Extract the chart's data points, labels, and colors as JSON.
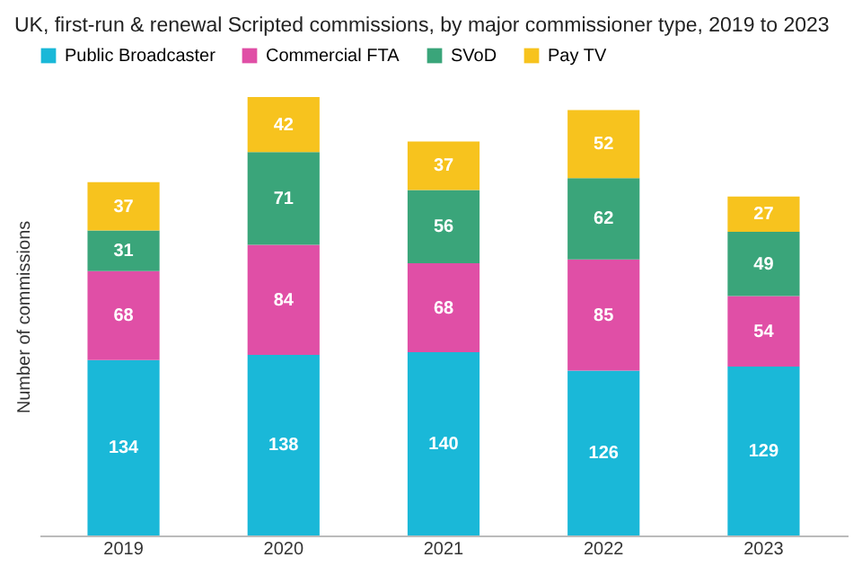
{
  "chart_data": {
    "type": "bar",
    "title": "UK, first-run & renewal Scripted commissions, by major commissioner type, 2019 to 2023",
    "ylabel": "Number of commissions",
    "categories": [
      "2019",
      "2020",
      "2021",
      "2022",
      "2023"
    ],
    "stacked": true,
    "data_labels": true,
    "legend": "top",
    "grid": false,
    "tick_labels": "x",
    "series": [
      {
        "name": "Public Broadcaster",
        "color": "#1ab8d8",
        "values": [
          134,
          138,
          140,
          126,
          129
        ]
      },
      {
        "name": "Commercial FTA",
        "color": "#e04fa6",
        "values": [
          68,
          84,
          68,
          85,
          54
        ]
      },
      {
        "name": "SVoD",
        "color": "#3aa57a",
        "values": [
          31,
          71,
          56,
          62,
          49
        ]
      },
      {
        "name": "Pay TV",
        "color": "#f7c31e",
        "values": [
          37,
          42,
          37,
          52,
          27
        ]
      }
    ]
  }
}
